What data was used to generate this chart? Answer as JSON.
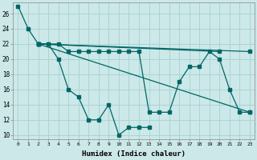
{
  "xlabel": "Humidex (Indice chaleur)",
  "bg_color": "#cce8e8",
  "grid_color": "#aad4d4",
  "line_color": "#006666",
  "xlim": [
    -0.5,
    23.5
  ],
  "ylim": [
    9.5,
    27.5
  ],
  "xticks": [
    0,
    1,
    2,
    3,
    4,
    5,
    6,
    7,
    8,
    9,
    10,
    11,
    12,
    13,
    14,
    15,
    16,
    17,
    18,
    19,
    20,
    21,
    22,
    23
  ],
  "yticks": [
    10,
    12,
    14,
    16,
    18,
    20,
    22,
    24,
    26
  ],
  "series": [
    {
      "x": [
        0,
        1,
        2,
        3,
        4,
        5,
        6,
        7,
        8,
        9,
        10,
        11,
        12,
        13
      ],
      "y": [
        27,
        24,
        22,
        22,
        20,
        16,
        15,
        12,
        12,
        14,
        10,
        11,
        11,
        11
      ]
    },
    {
      "x": [
        2,
        3,
        4,
        5,
        6,
        7,
        8,
        9,
        10,
        11,
        12,
        13,
        14,
        15,
        16,
        17,
        18,
        19,
        20,
        21,
        22,
        23
      ],
      "y": [
        22,
        22,
        22,
        21,
        21,
        21,
        21,
        21,
        21,
        21,
        21,
        13,
        13,
        13,
        17,
        19,
        19,
        21,
        20,
        16,
        13,
        13
      ]
    },
    {
      "x": [
        2,
        23
      ],
      "y": [
        22,
        21
      ]
    },
    {
      "x": [
        2,
        23
      ],
      "y": [
        22,
        13
      ]
    },
    {
      "x": [
        2,
        20
      ],
      "y": [
        22,
        21
      ]
    }
  ]
}
